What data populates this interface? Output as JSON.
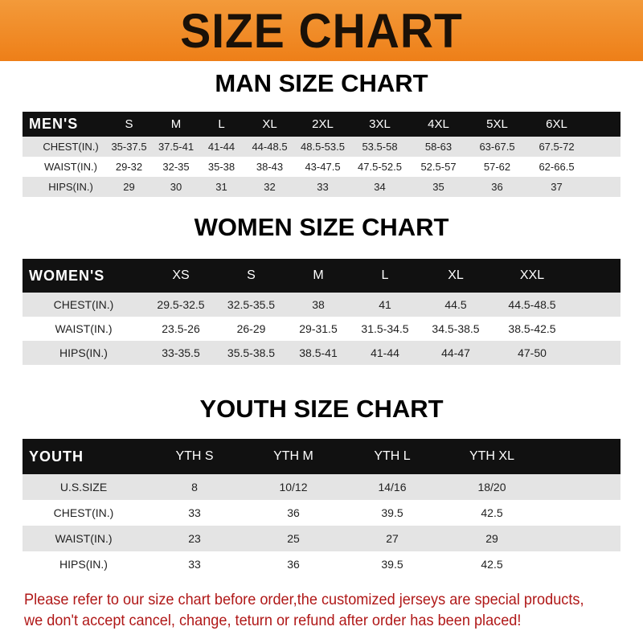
{
  "banner_title": "SIZE CHART",
  "men": {
    "title": "MAN SIZE CHART",
    "header": [
      "MEN'S",
      "S",
      "M",
      "L",
      "XL",
      "2XL",
      "3XL",
      "4XL",
      "5XL",
      "6XL"
    ],
    "rows": [
      [
        "CHEST(IN.)",
        "35-37.5",
        "37.5-41",
        "41-44",
        "44-48.5",
        "48.5-53.5",
        "53.5-58",
        "58-63",
        "63-67.5",
        "67.5-72"
      ],
      [
        "WAIST(IN.)",
        "29-32",
        "32-35",
        "35-38",
        "38-43",
        "43-47.5",
        "47.5-52.5",
        "52.5-57",
        "57-62",
        "62-66.5"
      ],
      [
        "HIPS(IN.)",
        "29",
        "30",
        "31",
        "32",
        "33",
        "34",
        "35",
        "36",
        "37"
      ]
    ]
  },
  "women": {
    "title": "WOMEN SIZE CHART",
    "header": [
      "WOMEN'S",
      "XS",
      "S",
      "M",
      "L",
      "XL",
      "XXL"
    ],
    "rows": [
      [
        "CHEST(IN.)",
        "29.5-32.5",
        "32.5-35.5",
        "38",
        "41",
        "44.5",
        "44.5-48.5"
      ],
      [
        "WAIST(IN.)",
        "23.5-26",
        "26-29",
        "29-31.5",
        "31.5-34.5",
        "34.5-38.5",
        "38.5-42.5"
      ],
      [
        "HIPS(IN.)",
        "33-35.5",
        "35.5-38.5",
        "38.5-41",
        "41-44",
        "44-47",
        "47-50"
      ]
    ]
  },
  "youth": {
    "title": "YOUTH SIZE CHART",
    "header": [
      "YOUTH",
      "YTH S",
      "YTH M",
      "YTH L",
      "YTH XL"
    ],
    "rows": [
      [
        "U.S.SIZE",
        "8",
        "10/12",
        "14/16",
        "18/20"
      ],
      [
        "CHEST(IN.)",
        "33",
        "36",
        "39.5",
        "42.5"
      ],
      [
        "WAIST(IN.)",
        "23",
        "25",
        "27",
        "29"
      ],
      [
        "HIPS(IN.)",
        "33",
        "36",
        "39.5",
        "42.5"
      ]
    ]
  },
  "note": {
    "line1": "Please refer to our size chart before order,the customized jerseys are special products,",
    "line2": "we don't accept cancel, change, teturn or refund after order has been placed!"
  },
  "colors": {
    "banner": "#ee7f18",
    "header_row": "#111111",
    "shaded_row": "#e4e4e4",
    "note": "#b01818"
  }
}
